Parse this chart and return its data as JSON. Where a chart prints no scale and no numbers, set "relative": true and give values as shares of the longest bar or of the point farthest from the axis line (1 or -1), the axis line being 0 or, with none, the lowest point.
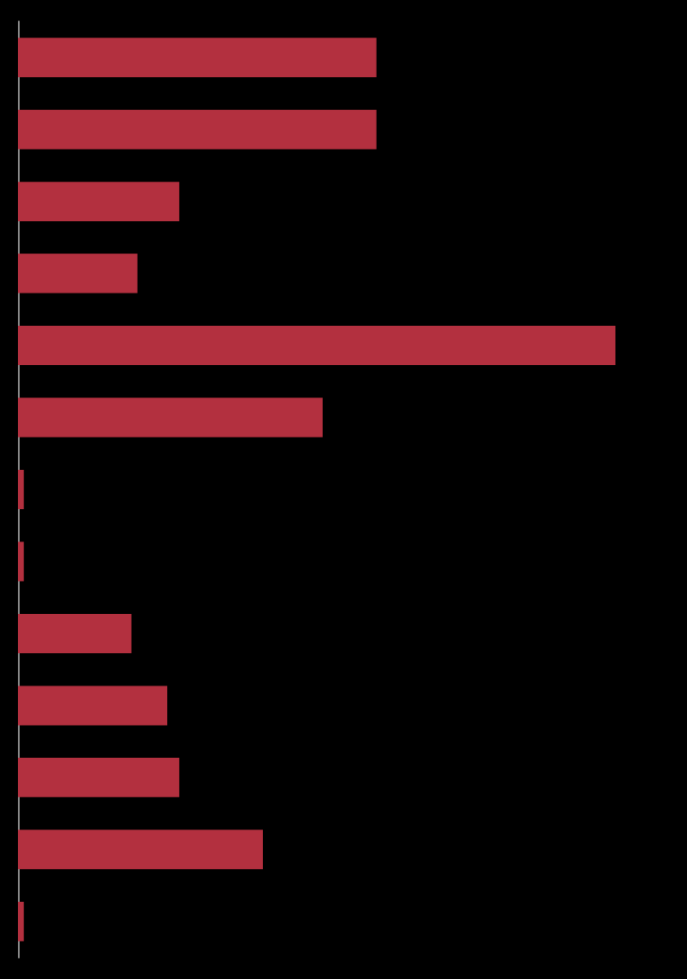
{
  "chart_data": {
    "type": "bar",
    "orientation": "horizontal",
    "relative": true,
    "categories": [
      null,
      null,
      null,
      null,
      null,
      null,
      null,
      null,
      null,
      null,
      null,
      null,
      null
    ],
    "values": [
      0.6,
      0.6,
      0.27,
      0.2,
      1,
      0.51,
      0.01,
      0.01,
      0.19,
      0.25,
      0.27,
      0.41,
      0.01
    ],
    "color": "#b3303f"
  }
}
